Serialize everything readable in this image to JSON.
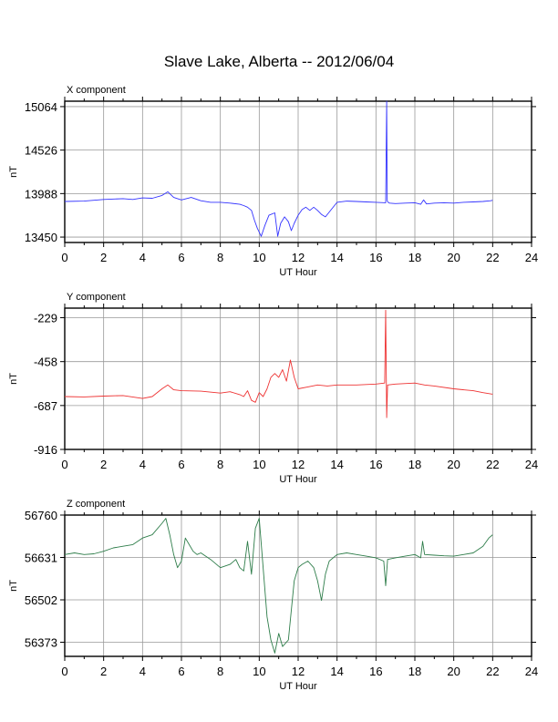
{
  "title": "Slave Lake, Alberta -- 2012/06/04",
  "chart_data": [
    {
      "type": "line",
      "title": "X component",
      "xlabel": "UT Hour",
      "ylabel": "nT",
      "xlim": [
        0,
        24
      ],
      "ylim": [
        13383,
        15131
      ],
      "xticks": [
        0,
        2,
        4,
        6,
        8,
        10,
        12,
        14,
        16,
        18,
        20,
        22,
        24
      ],
      "yticks": [
        13450,
        13988,
        14526,
        15064
      ],
      "grid": true,
      "color": "#3333ff",
      "series": [
        {
          "x": [
            0,
            1,
            2,
            3,
            3.5,
            4,
            4.5,
            5,
            5.3,
            5.6,
            6,
            6.5,
            7,
            7.5,
            8,
            8.5,
            9,
            9.2,
            9.4,
            9.6,
            9.75,
            9.9,
            10.1,
            10.3,
            10.5,
            10.8,
            10.95,
            11.1,
            11.3,
            11.5,
            11.65,
            11.8,
            12.0,
            12.2,
            12.4,
            12.6,
            12.8,
            13.0,
            13.2,
            13.4,
            13.6,
            14,
            14.5,
            15,
            15.5,
            16,
            16.5,
            16.55,
            16.58,
            16.62,
            16.7,
            17,
            17.5,
            18,
            18.3,
            18.45,
            18.6,
            19,
            19.5,
            20,
            20.5,
            21,
            21.5,
            21.9,
            22.0
          ],
          "y": [
            13890,
            13895,
            13915,
            13925,
            13915,
            13935,
            13930,
            13965,
            14010,
            13940,
            13910,
            13940,
            13900,
            13880,
            13880,
            13870,
            13855,
            13840,
            13820,
            13780,
            13660,
            13560,
            13460,
            13600,
            13720,
            13750,
            13460,
            13620,
            13700,
            13640,
            13530,
            13620,
            13720,
            13790,
            13820,
            13780,
            13820,
            13780,
            13730,
            13700,
            13760,
            13880,
            13895,
            13890,
            13885,
            13880,
            13875,
            15130,
            13900,
            13880,
            13870,
            13865,
            13870,
            13875,
            13855,
            13910,
            13860,
            13870,
            13875,
            13870,
            13880,
            13885,
            13890,
            13900,
            13905
          ]
        }
      ]
    },
    {
      "type": "line",
      "title": "Y component",
      "xlabel": "UT Hour",
      "ylabel": "nT",
      "xlim": [
        0,
        24
      ],
      "ylim": [
        -916,
        -179
      ],
      "xticks": [
        0,
        2,
        4,
        6,
        8,
        10,
        12,
        14,
        16,
        18,
        20,
        22,
        24
      ],
      "yticks": [
        -229,
        -458,
        -687,
        -916
      ],
      "grid": true,
      "color": "#ee3333",
      "series": [
        {
          "x": [
            0,
            1,
            2,
            3,
            4,
            4.5,
            5,
            5.3,
            5.6,
            6,
            7,
            8,
            8.5,
            9,
            9.2,
            9.4,
            9.6,
            9.8,
            10.0,
            10.2,
            10.4,
            10.6,
            10.8,
            11.0,
            11.2,
            11.4,
            11.6,
            11.8,
            12.0,
            12.5,
            13,
            13.5,
            14,
            15,
            16,
            16.45,
            16.5,
            16.55,
            16.6,
            17,
            18,
            18.5,
            19,
            20,
            21,
            21.5,
            22.0
          ],
          "y": [
            -640,
            -642,
            -638,
            -635,
            -650,
            -640,
            -600,
            -580,
            -605,
            -610,
            -612,
            -622,
            -615,
            -630,
            -640,
            -610,
            -660,
            -670,
            -620,
            -640,
            -600,
            -540,
            -520,
            -540,
            -500,
            -560,
            -450,
            -540,
            -600,
            -590,
            -580,
            -585,
            -580,
            -580,
            -575,
            -570,
            -190,
            -750,
            -580,
            -575,
            -570,
            -580,
            -585,
            -600,
            -610,
            -620,
            -628
          ]
        }
      ]
    },
    {
      "type": "line",
      "title": "Z component",
      "xlabel": "UT Hour",
      "ylabel": "nT",
      "xlim": [
        0,
        24
      ],
      "ylim": [
        56330,
        56760
      ],
      "xticks": [
        0,
        2,
        4,
        6,
        8,
        10,
        12,
        14,
        16,
        18,
        20,
        22,
        24
      ],
      "yticks": [
        56760,
        56631,
        56502,
        56373
      ],
      "grid": true,
      "color": "#2e7d4a",
      "series": [
        {
          "x": [
            0,
            0.5,
            1,
            1.5,
            2,
            2.5,
            3,
            3.5,
            4,
            4.5,
            5.0,
            5.2,
            5.4,
            5.6,
            5.8,
            6.0,
            6.2,
            6.4,
            6.6,
            6.8,
            7.0,
            7.5,
            8.0,
            8.5,
            8.8,
            9.0,
            9.2,
            9.4,
            9.6,
            9.8,
            10.0,
            10.2,
            10.4,
            10.6,
            10.8,
            11.0,
            11.2,
            11.5,
            11.8,
            12.0,
            12.2,
            12.5,
            12.8,
            13.0,
            13.2,
            13.4,
            13.6,
            14,
            14.5,
            15,
            15.5,
            16,
            16.4,
            16.5,
            16.6,
            17,
            17.5,
            18,
            18.3,
            18.4,
            18.5,
            19,
            19.5,
            20,
            20.5,
            21,
            21.5,
            21.8,
            22.0
          ],
          "y": [
            56640,
            56645,
            56640,
            56642,
            56650,
            56660,
            56665,
            56670,
            56690,
            56700,
            56735,
            56750,
            56700,
            56640,
            56600,
            56620,
            56690,
            56670,
            56650,
            56640,
            56645,
            56625,
            56600,
            56610,
            56625,
            56600,
            56590,
            56680,
            56580,
            56720,
            56750,
            56600,
            56450,
            56380,
            56340,
            56400,
            56360,
            56380,
            56560,
            56600,
            56610,
            56620,
            56600,
            56560,
            56500,
            56580,
            56620,
            56640,
            56645,
            56640,
            56635,
            56630,
            56620,
            56545,
            56625,
            56630,
            56635,
            56640,
            56630,
            56680,
            56640,
            56638,
            56636,
            56635,
            56640,
            56645,
            56665,
            56690,
            56700
          ]
        }
      ]
    }
  ]
}
